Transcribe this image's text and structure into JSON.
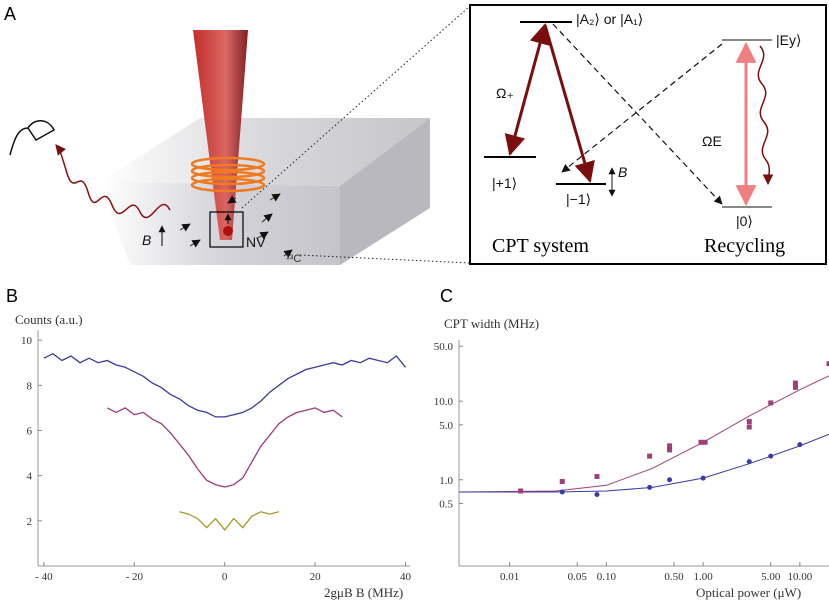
{
  "panel_labels": [
    "A",
    "B",
    "C"
  ],
  "diagram": {
    "field_label": "B",
    "nv_label": "NV",
    "carbon_label": "¹³C"
  },
  "levels": {
    "excited": "|A₂⟩ or |A₁⟩",
    "omega_plus": "Ω₊",
    "plus_one": "|+1⟩",
    "minus_one": "|−1⟩",
    "field": "B",
    "ey": "|Ey⟩",
    "omega_e": "ΩE",
    "zero": "|0⟩",
    "cpt_system": "CPT system",
    "recycling": "Recycling"
  },
  "chart_data": [
    {
      "type": "line",
      "ylabel": "Counts (a.u.)",
      "xlabel": "2gμB B (MHz)",
      "x": [
        -40,
        -38,
        -36,
        -34,
        -32,
        -30,
        -28,
        -26,
        -24,
        -22,
        -20,
        -18,
        -16,
        -14,
        -12,
        -10,
        -8,
        -6,
        -4,
        -2,
        0,
        2,
        4,
        6,
        8,
        10,
        12,
        14,
        16,
        18,
        20,
        22,
        24,
        26,
        28,
        30,
        32,
        34,
        36,
        38,
        40
      ],
      "series": [
        {
          "color": "#3b3b9c",
          "values": [
            9.2,
            9.4,
            9.1,
            9.3,
            9.0,
            9.2,
            9.0,
            9.1,
            8.9,
            8.8,
            8.6,
            8.4,
            8.1,
            7.9,
            7.6,
            7.4,
            7.1,
            6.9,
            6.8,
            6.6,
            6.6,
            6.7,
            6.8,
            7.0,
            7.3,
            7.7,
            8.0,
            8.3,
            8.5,
            8.7,
            8.8,
            8.9,
            9.0,
            8.9,
            9.1,
            9.0,
            9.2,
            9.1,
            9.0,
            9.3,
            8.8
          ]
        },
        {
          "color": "#9a3a78",
          "values": [
            null,
            null,
            null,
            null,
            null,
            null,
            null,
            7.0,
            6.8,
            7.0,
            6.7,
            6.8,
            6.5,
            6.3,
            5.9,
            5.4,
            4.9,
            4.3,
            3.8,
            3.6,
            3.5,
            3.6,
            3.9,
            4.6,
            5.3,
            5.8,
            6.3,
            6.6,
            6.8,
            6.9,
            7.0,
            6.8,
            6.9,
            6.6,
            null,
            null,
            null,
            null,
            null,
            null,
            null
          ]
        },
        {
          "color": "#a8982a",
          "values": [
            null,
            null,
            null,
            null,
            null,
            null,
            null,
            null,
            null,
            null,
            null,
            null,
            null,
            null,
            null,
            2.4,
            2.3,
            2.1,
            1.7,
            2.1,
            1.6,
            2.1,
            1.7,
            2.2,
            2.4,
            2.3,
            2.4,
            null,
            null,
            null,
            null,
            null,
            null,
            null,
            null,
            null,
            null,
            null,
            null,
            null,
            null
          ]
        }
      ],
      "xlim": [
        -41.3,
        41
      ],
      "ylim": [
        0,
        10.45
      ],
      "xticks": [
        {
          "value": -40,
          "label": "- 40"
        },
        {
          "value": -20,
          "label": "- 20"
        },
        0,
        20,
        40
      ],
      "yticks": [
        2,
        4,
        6,
        8,
        10
      ]
    },
    {
      "type": "scatter",
      "ylabel": "CPT width (MHz)",
      "xlabel": "Optical power (μW)",
      "log_x": true,
      "log_y": true,
      "series": [
        {
          "color": "#a0407a",
          "marker": "line",
          "x": [
            0.003,
            0.03,
            0.1,
            0.3,
            1,
            3,
            10,
            20
          ],
          "values": [
            0.7,
            0.72,
            0.85,
            1.4,
            3.0,
            6.5,
            14,
            21
          ]
        },
        {
          "color": "#3b3ba0",
          "marker": "line",
          "x": [
            0.003,
            0.03,
            0.1,
            0.3,
            1,
            3,
            10,
            20
          ],
          "values": [
            0.7,
            0.7,
            0.72,
            0.8,
            1.05,
            1.6,
            2.7,
            3.8
          ]
        },
        {
          "color": "#a0407a",
          "marker": "square",
          "x": [
            0.013,
            0.035,
            0.08,
            0.28,
            0.45,
            0.45,
            0.95,
            1.05,
            3,
            3,
            5,
            9,
            9,
            20
          ],
          "values": [
            0.72,
            0.95,
            1.1,
            2.0,
            2.7,
            2.4,
            3.0,
            3.0,
            5.5,
            4.7,
            9.5,
            15,
            17,
            30
          ]
        },
        {
          "color": "#3b3ba0",
          "marker": "circle",
          "x": [
            0.035,
            0.08,
            0.28,
            0.45,
            1.0,
            3,
            5,
            10
          ],
          "values": [
            0.7,
            0.65,
            0.8,
            1.0,
            1.05,
            1.7,
            2.0,
            2.8
          ]
        }
      ],
      "xlim": [
        0.003,
        20
      ],
      "ylim": [
        0.08,
        60
      ],
      "xticks": [
        0.01,
        0.05,
        {
          "value": 0.1,
          "label": "0.10"
        },
        {
          "value": 0.5,
          "label": "0.50"
        },
        {
          "value": 1,
          "label": "1.00"
        },
        {
          "value": 5,
          "label": "5.00"
        },
        {
          "value": 10,
          "label": "10.00"
        }
      ],
      "yticks": [
        0.5,
        {
          "value": 1,
          "label": "1.0"
        },
        {
          "value": 5,
          "label": "5.0"
        },
        {
          "value": 10,
          "label": "10.0"
        },
        {
          "value": 50,
          "label": "50.0"
        }
      ]
    }
  ]
}
